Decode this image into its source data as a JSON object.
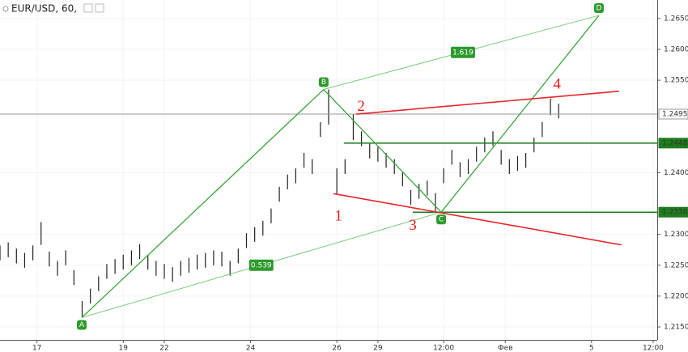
{
  "chart_data": {
    "type": "ohlc",
    "title": "EUR/USD, 60,",
    "color": "#222222",
    "xlim": [
      0,
      160
    ],
    "ylim": [
      1.2129,
      1.268
    ],
    "xticks": [
      {
        "value": 9,
        "label": "17"
      },
      {
        "value": 30,
        "label": "19"
      },
      {
        "value": 40,
        "label": "22"
      },
      {
        "value": 61,
        "label": "24"
      },
      {
        "value": 82,
        "label": "26"
      },
      {
        "value": 92,
        "label": "29"
      },
      {
        "value": 108,
        "label": "12:00"
      },
      {
        "value": 123,
        "label": "Фев"
      },
      {
        "value": 144,
        "label": "5"
      },
      {
        "value": 159,
        "label": "12:00"
      }
    ],
    "yticks": [
      {
        "value": 1.215,
        "label": "1.2150"
      },
      {
        "value": 1.22,
        "label": "1.2200"
      },
      {
        "value": 1.225,
        "label": "1.2250"
      },
      {
        "value": 1.23,
        "label": "1.2300"
      },
      {
        "value": 1.24,
        "label": "1.2400"
      },
      {
        "value": 1.255,
        "label": "1.2550"
      },
      {
        "value": 1.26,
        "label": "1.2600"
      },
      {
        "value": 1.265,
        "label": "1.2650"
      }
    ],
    "x": [
      0,
      2,
      4,
      6,
      8,
      10,
      12,
      14,
      16,
      18,
      20,
      22,
      24,
      26,
      28,
      30,
      32,
      34,
      36,
      38,
      40,
      42,
      44,
      46,
      48,
      50,
      52,
      54,
      56,
      58,
      60,
      62,
      64,
      66,
      68,
      70,
      72,
      74,
      76,
      78,
      80,
      82,
      84,
      86,
      88,
      90,
      92,
      94,
      96,
      98,
      100,
      102,
      104,
      106,
      108,
      110,
      112,
      114,
      116,
      118,
      120,
      122,
      124,
      126,
      128,
      130,
      132,
      134,
      136
    ],
    "high": [
      1.2282,
      1.2287,
      1.2277,
      1.227,
      1.2282,
      1.232,
      1.2272,
      1.2257,
      1.2274,
      1.2242,
      1.2192,
      1.2212,
      1.2232,
      1.2252,
      1.226,
      1.2267,
      1.2274,
      1.2284,
      1.2267,
      1.2257,
      1.2252,
      1.2247,
      1.2257,
      1.2262,
      1.2267,
      1.227,
      1.2274,
      1.2272,
      1.2257,
      1.2277,
      1.2302,
      1.2312,
      1.2322,
      1.2342,
      1.2377,
      1.2397,
      1.2407,
      1.2432,
      1.2422,
      1.2482,
      1.2535,
      1.2407,
      1.2422,
      1.2495,
      1.2467,
      1.2447,
      1.2442,
      1.2432,
      1.2422,
      1.2402,
      1.2372,
      1.2382,
      1.2387,
      1.2367,
      1.2407,
      1.2437,
      1.2417,
      1.2422,
      1.2442,
      1.2457,
      1.2467,
      1.2437,
      1.2422,
      1.2427,
      1.2432,
      1.2457,
      1.2482,
      1.252,
      1.2512
    ],
    "low": [
      1.2258,
      1.2263,
      1.2253,
      1.2246,
      1.2258,
      1.2283,
      1.2248,
      1.2233,
      1.225,
      1.2218,
      1.2165,
      1.2188,
      1.2208,
      1.2228,
      1.2236,
      1.2243,
      1.225,
      1.226,
      1.2243,
      1.2233,
      1.2228,
      1.2223,
      1.2233,
      1.2238,
      1.2243,
      1.2246,
      1.225,
      1.2248,
      1.2233,
      1.2253,
      1.2278,
      1.2288,
      1.2298,
      1.2318,
      1.2353,
      1.2373,
      1.2383,
      1.2408,
      1.2398,
      1.2458,
      1.2478,
      1.2366,
      1.2398,
      1.2453,
      1.2443,
      1.2423,
      1.2418,
      1.2408,
      1.2398,
      1.2378,
      1.2348,
      1.2358,
      1.2363,
      1.2336,
      1.2383,
      1.2413,
      1.2393,
      1.2398,
      1.2418,
      1.2433,
      1.2443,
      1.2413,
      1.2398,
      1.2403,
      1.2408,
      1.2433,
      1.2458,
      1.2493,
      1.2488
    ],
    "lines": [
      {
        "color": "#3aa63a",
        "width": 1.3,
        "x": [
          19.9,
          78.8,
          107.4,
          145.8
        ],
        "y": [
          1.2165,
          1.2535,
          1.2336,
          1.2655
        ]
      },
      {
        "color": "#7ccc7c",
        "width": 1,
        "x": [
          19.9,
          107.4
        ],
        "y": [
          1.2165,
          1.2336
        ]
      },
      {
        "color": "#7ccc7c",
        "width": 1,
        "x": [
          78.8,
          145.8
        ],
        "y": [
          1.2535,
          1.2655
        ]
      },
      {
        "color": "#e8262b",
        "width": 1.6,
        "x": [
          86.7,
          150.7
        ],
        "y": [
          1.2495,
          1.2532
        ]
      },
      {
        "color": "#e8262b",
        "width": 1.6,
        "x": [
          81.2,
          151.3
        ],
        "y": [
          1.2366,
          1.2283
        ]
      }
    ],
    "price_labels": [
      {
        "value": 1.2495,
        "color": "#999999",
        "from": 0
      },
      {
        "value": 1.2448,
        "color": "#1e7d1e",
        "from": 83.7
      },
      {
        "value": 1.2336,
        "color": "#1e7d1e",
        "from": 100.5
      }
    ],
    "point_labels": [
      {
        "text": "A",
        "x": 19.9,
        "y": 1.2165,
        "side": "below"
      },
      {
        "text": "B",
        "x": 78.8,
        "y": 1.2535,
        "side": "above"
      },
      {
        "text": "C",
        "x": 107.4,
        "y": 1.2336,
        "side": "below"
      },
      {
        "text": "D",
        "x": 145.8,
        "y": 1.2655,
        "side": "above"
      }
    ],
    "ratio_labels": [
      {
        "text": "1.619",
        "x": 112.7,
        "y": 1.2595
      },
      {
        "text": "0.539",
        "x": 63.6,
        "y": 1.225
      }
    ],
    "wave_labels": [
      {
        "text": "1",
        "x": 82.4,
        "y": 1.2328
      },
      {
        "text": "2",
        "x": 87.9,
        "y": 1.2506
      },
      {
        "text": "3",
        "x": 100.5,
        "y": 1.2313
      },
      {
        "text": "4",
        "x": 135.6,
        "y": 1.2542
      }
    ]
  }
}
